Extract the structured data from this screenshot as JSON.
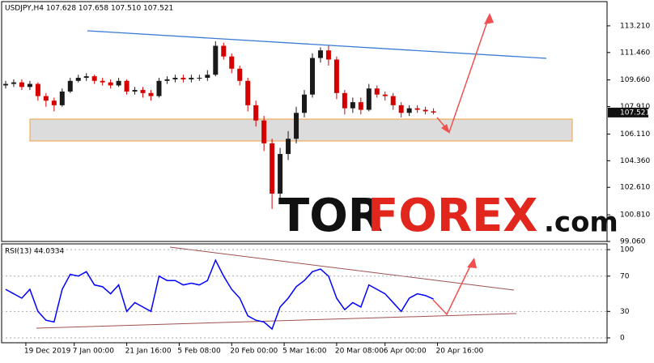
{
  "chart_data": [
    {
      "type": "candlestick",
      "title": "USDJPY,H4  107.628 107.658 107.510 107.521",
      "last_price": {
        "value": 107.521,
        "label": "107.521"
      },
      "colors": {
        "up": "#1a1a1a",
        "down": "#d40000"
      },
      "x": [
        1,
        3,
        5,
        7,
        9,
        11,
        13,
        15,
        17,
        19,
        21,
        23,
        25,
        27,
        29,
        31,
        33,
        35,
        37,
        39,
        41,
        43,
        45,
        47,
        49,
        51,
        53,
        55,
        57,
        59,
        61,
        63,
        65,
        67,
        69,
        71,
        73,
        75,
        77,
        79,
        81,
        83,
        85,
        87,
        89,
        91,
        93,
        95,
        97,
        99,
        101,
        103,
        105,
        107
      ],
      "open": [
        109.3,
        109.4,
        109.5,
        109.2,
        109.4,
        108.6,
        108.3,
        108.0,
        108.9,
        109.6,
        109.8,
        109.9,
        109.6,
        109.5,
        109.3,
        109.6,
        108.9,
        109.0,
        108.8,
        108.6,
        109.6,
        109.7,
        109.8,
        109.7,
        109.8,
        109.8,
        110.0,
        111.9,
        111.2,
        110.4,
        109.6,
        108.0,
        107.0,
        105.5,
        102.2,
        104.8,
        105.8,
        107.5,
        108.7,
        111.1,
        111.6,
        111.0,
        108.8,
        107.8,
        108.2,
        107.7,
        109.1,
        108.7,
        108.6,
        108.0,
        107.5,
        107.8,
        107.7,
        107.6
      ],
      "high": [
        109.6,
        109.7,
        109.7,
        109.6,
        109.5,
        108.8,
        108.5,
        109.1,
        109.8,
        110.0,
        110.1,
        110.0,
        109.8,
        109.7,
        109.8,
        109.7,
        109.2,
        109.2,
        109.0,
        109.8,
        109.9,
        110.0,
        110.0,
        110.0,
        110.0,
        110.3,
        112.2,
        112.1,
        111.4,
        110.6,
        109.8,
        108.3,
        107.3,
        105.8,
        105.2,
        106.3,
        107.9,
        109.0,
        111.4,
        111.8,
        111.9,
        111.2,
        109.0,
        108.5,
        108.5,
        109.4,
        109.3,
        108.9,
        108.8,
        108.2,
        108.0,
        108.0,
        107.9,
        107.8
      ],
      "low": [
        109.1,
        109.2,
        109.0,
        109.0,
        108.3,
        107.9,
        107.6,
        107.9,
        108.8,
        109.5,
        109.6,
        109.4,
        109.3,
        109.1,
        109.2,
        108.7,
        108.7,
        108.5,
        108.3,
        108.5,
        109.4,
        109.5,
        109.5,
        109.5,
        109.6,
        109.6,
        109.9,
        111.0,
        110.1,
        109.3,
        107.6,
        106.6,
        105.0,
        101.2,
        101.8,
        104.4,
        105.5,
        107.2,
        108.5,
        110.8,
        110.6,
        108.4,
        107.4,
        107.5,
        107.4,
        107.6,
        108.5,
        108.3,
        107.7,
        107.2,
        107.3,
        107.5,
        107.4,
        107.4
      ],
      "close": [
        109.4,
        109.5,
        109.2,
        109.4,
        108.6,
        108.3,
        108.0,
        108.9,
        109.6,
        109.8,
        109.9,
        109.6,
        109.5,
        109.3,
        109.6,
        108.9,
        109.0,
        108.8,
        108.6,
        109.6,
        109.7,
        109.8,
        109.7,
        109.8,
        109.8,
        110.0,
        111.9,
        111.2,
        110.4,
        109.6,
        108.0,
        107.0,
        105.5,
        102.2,
        104.8,
        105.8,
        107.5,
        108.7,
        111.1,
        111.6,
        111.0,
        108.8,
        107.8,
        108.2,
        107.7,
        109.1,
        108.7,
        108.6,
        108.0,
        107.5,
        107.8,
        107.7,
        107.6,
        107.52
      ],
      "xlim": [
        0,
        150
      ],
      "ylim": [
        99.06,
        114.8
      ],
      "yticks": [
        {
          "value": 113.21,
          "label": "113.210"
        },
        {
          "value": 111.46,
          "label": "111.460"
        },
        {
          "value": 109.66,
          "label": "109.660"
        },
        {
          "value": 107.91,
          "label": "107.910"
        },
        {
          "value": 106.11,
          "label": "106.110"
        },
        {
          "value": 104.36,
          "label": "104.360"
        },
        {
          "value": 102.61,
          "label": "102.610"
        },
        {
          "value": 100.81,
          "label": "100.810"
        },
        {
          "value": 99.06,
          "label": "99.060"
        }
      ],
      "xticks": [
        {
          "value": 6,
          "label": "19 Dec 2019"
        },
        {
          "value": 18,
          "label": "7 Jan 00:00"
        },
        {
          "value": 31,
          "label": "21 Jan 16:00"
        },
        {
          "value": 44,
          "label": "5 Feb 08:00"
        },
        {
          "value": 57,
          "label": "20 Feb 00:00"
        },
        {
          "value": 70,
          "label": "5 Mar 16:00"
        },
        {
          "value": 83,
          "label": "20 Mar 08:00"
        },
        {
          "value": 95,
          "label": "6 Apr 00:00"
        },
        {
          "value": 108,
          "label": "20 Apr 16:00"
        }
      ],
      "logo": [
        "TOR",
        "FOREX",
        ".com"
      ]
    },
    {
      "type": "line",
      "title": "RSI(13) 44.0334",
      "color": "#0000ff",
      "x": [
        1,
        3,
        5,
        7,
        9,
        11,
        13,
        15,
        17,
        19,
        21,
        23,
        25,
        27,
        29,
        31,
        33,
        35,
        37,
        39,
        41,
        43,
        45,
        47,
        49,
        51,
        53,
        55,
        57,
        59,
        61,
        63,
        65,
        67,
        69,
        71,
        73,
        75,
        77,
        79,
        81,
        83,
        85,
        87,
        89,
        91,
        93,
        95,
        97,
        99,
        101,
        103,
        105,
        107
      ],
      "values": [
        55,
        50,
        45,
        55,
        30,
        20,
        18,
        55,
        72,
        70,
        75,
        60,
        58,
        50,
        60,
        30,
        40,
        35,
        30,
        70,
        65,
        65,
        60,
        62,
        60,
        65,
        88,
        70,
        55,
        45,
        25,
        20,
        18,
        10,
        35,
        45,
        58,
        65,
        75,
        78,
        70,
        45,
        32,
        40,
        35,
        60,
        55,
        50,
        40,
        30,
        45,
        50,
        48,
        44
      ],
      "xlim": [
        0,
        150
      ],
      "ylim": [
        -5.5,
        106.5
      ],
      "yticks": [
        0,
        30,
        70,
        100
      ]
    }
  ]
}
